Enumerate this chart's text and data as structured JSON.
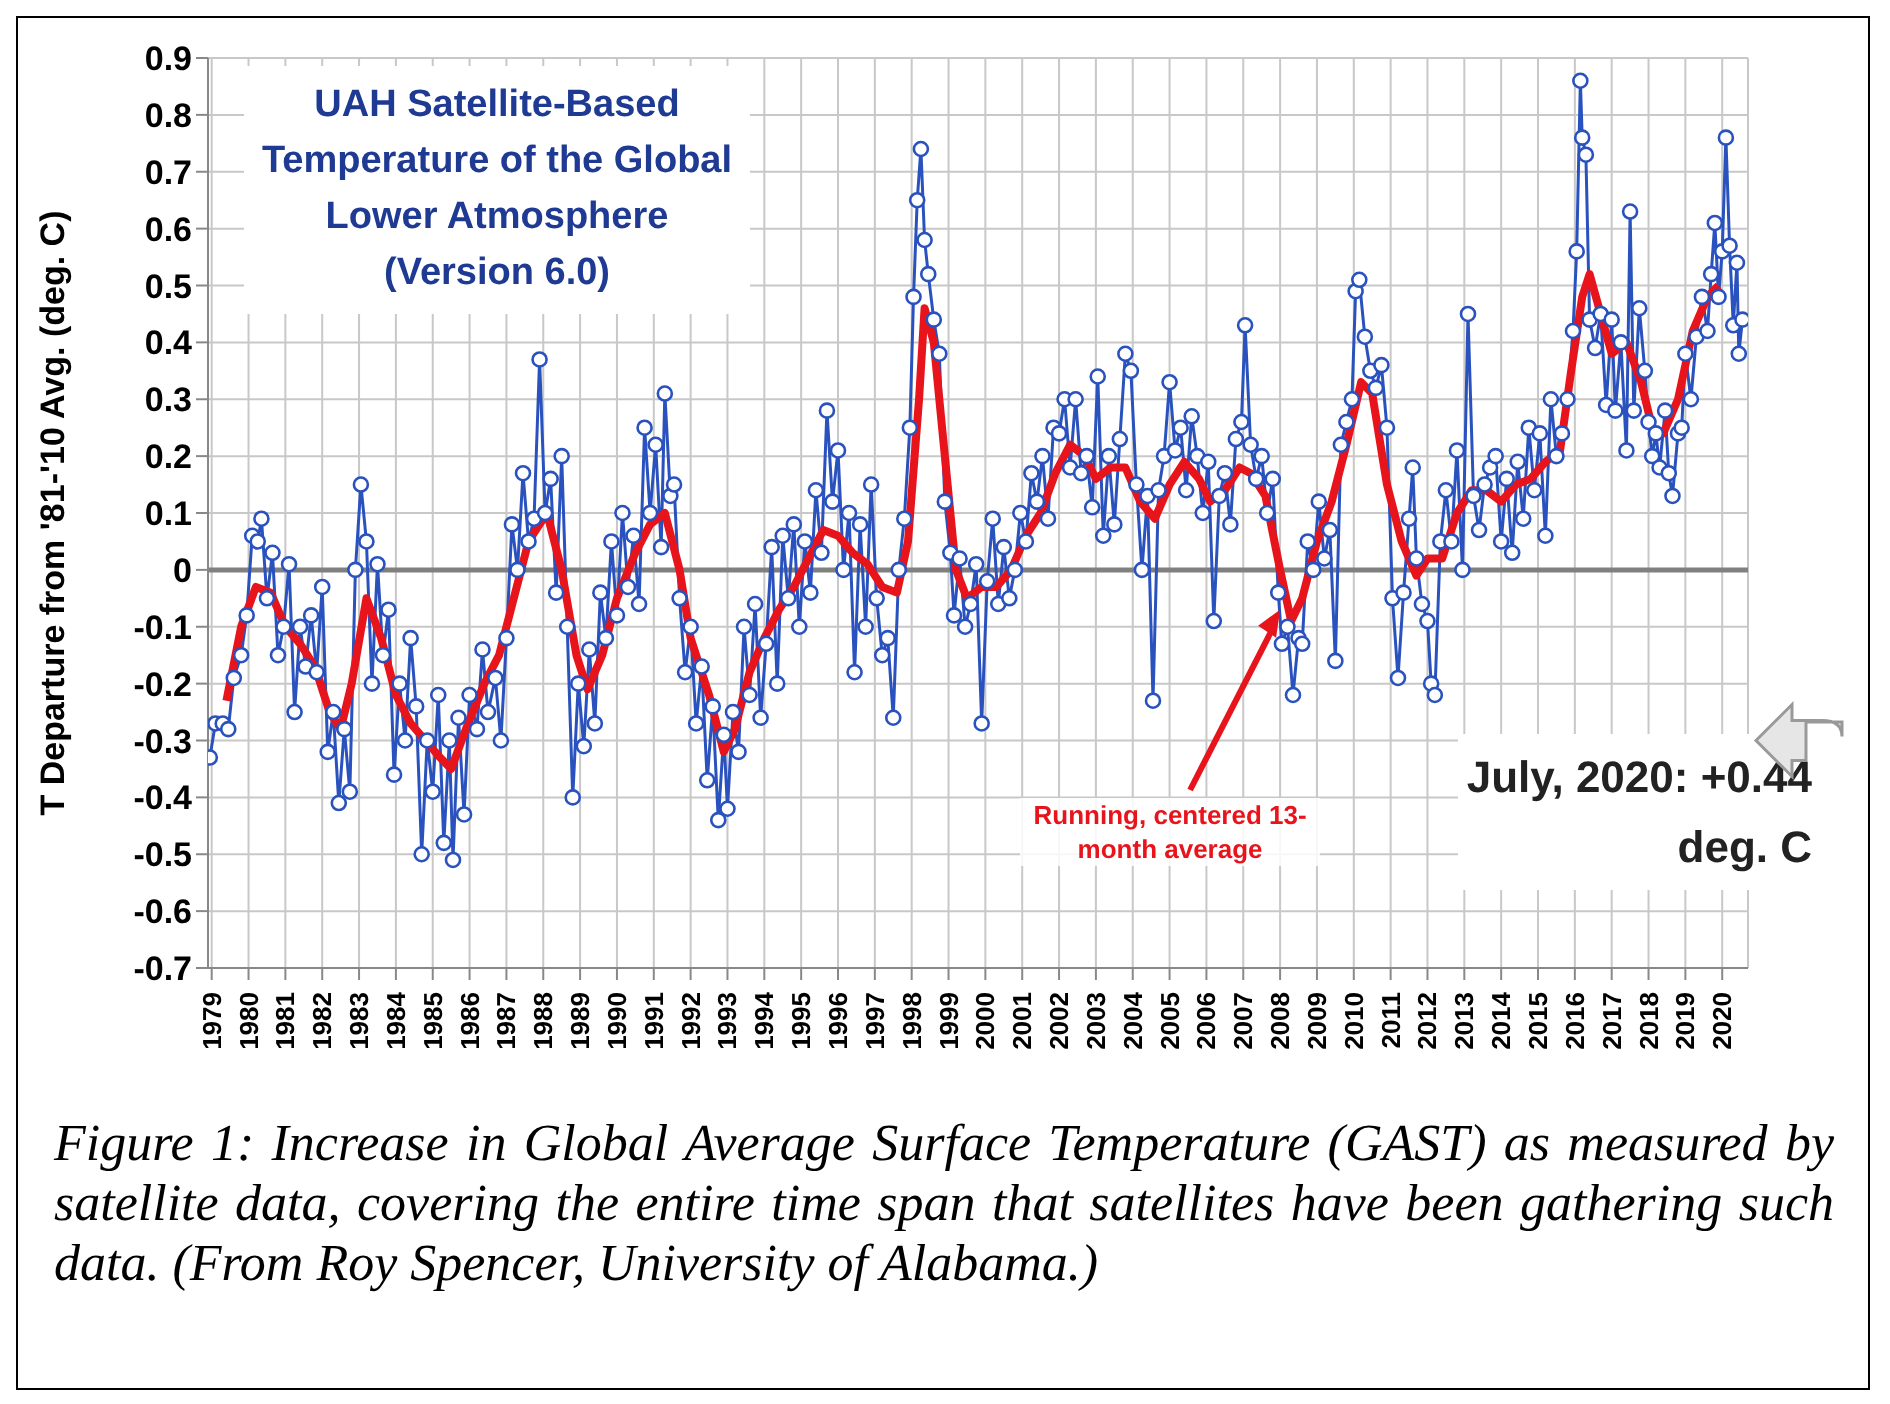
{
  "chart_data": {
    "type": "line",
    "title": "UAH Satellite-Based Temperature of the Global Lower Atmosphere (Version 6.0)",
    "ylabel": "T Departure from '81-'10 Avg. (deg. C)",
    "xlim": [
      1978.9,
      2020.7
    ],
    "xticks": [
      {
        "value": 1979,
        "label": "1979"
      },
      {
        "value": 1980,
        "label": "1980"
      },
      {
        "value": 1981,
        "label": "1981"
      },
      {
        "value": 1982,
        "label": "1982"
      },
      {
        "value": 1983,
        "label": "1983"
      },
      {
        "value": 1984,
        "label": "1984"
      },
      {
        "value": 1985,
        "label": "1985"
      },
      {
        "value": 1986,
        "label": "1986"
      },
      {
        "value": 1987,
        "label": "1987"
      },
      {
        "value": 1988,
        "label": "1988"
      },
      {
        "value": 1989,
        "label": "1989"
      },
      {
        "value": 1990,
        "label": "1990"
      },
      {
        "value": 1991,
        "label": "1991"
      },
      {
        "value": 1992,
        "label": "1992"
      },
      {
        "value": 1993,
        "label": "1993"
      },
      {
        "value": 1994,
        "label": "1994"
      },
      {
        "value": 1995,
        "label": "1995"
      },
      {
        "value": 1996,
        "label": "1996"
      },
      {
        "value": 1997,
        "label": "1997"
      },
      {
        "value": 1998,
        "label": "1998"
      },
      {
        "value": 1999,
        "label": "1999"
      },
      {
        "value": 2000,
        "label": "2000"
      },
      {
        "value": 2001,
        "label": "2001"
      },
      {
        "value": 2002,
        "label": "2002"
      },
      {
        "value": 2003,
        "label": "2003"
      },
      {
        "value": 2004,
        "label": "2004"
      },
      {
        "value": 2005,
        "label": "2005"
      },
      {
        "value": 2006,
        "label": "2006"
      },
      {
        "value": 2007,
        "label": "2007"
      },
      {
        "value": 2008,
        "label": "2008"
      },
      {
        "value": 2009,
        "label": "2009"
      },
      {
        "value": 2010,
        "label": "2010"
      },
      {
        "value": 2011,
        "label": "2011"
      },
      {
        "value": 2012,
        "label": "2012"
      },
      {
        "value": 2013,
        "label": "2013"
      },
      {
        "value": 2014,
        "label": "2014"
      },
      {
        "value": 2015,
        "label": "2015"
      },
      {
        "value": 2016,
        "label": "2016"
      },
      {
        "value": 2017,
        "label": "2017"
      },
      {
        "value": 2018,
        "label": "2018"
      },
      {
        "value": 2019,
        "label": "2019"
      },
      {
        "value": 2020,
        "label": "2020"
      }
    ],
    "ylim": [
      -0.7,
      0.9
    ],
    "yticks": [
      -0.7,
      -0.6,
      -0.5,
      -0.4,
      -0.3,
      -0.2,
      -0.1,
      0,
      0.1,
      0.2,
      0.3,
      0.4,
      0.5,
      0.6,
      0.7,
      0.8,
      0.9
    ],
    "grid": true,
    "ref_lines": [
      {
        "axis": "y",
        "value": 0,
        "color": "#808080"
      }
    ],
    "series": [
      {
        "color": "#2a52be",
        "marker": "circle",
        "x": [
          1978.95,
          1979.1,
          1979.3,
          1979.45,
          1979.6,
          1979.8,
          1979.95,
          1980.1,
          1980.25,
          1980.35,
          1980.5,
          1980.65,
          1980.8,
          1980.95,
          1981.1,
          1981.25,
          1981.4,
          1981.55,
          1981.7,
          1981.85,
          1982.0,
          1982.15,
          1982.3,
          1982.45,
          1982.6,
          1982.75,
          1982.9,
          1983.05,
          1983.2,
          1983.35,
          1983.5,
          1983.65,
          1983.8,
          1983.95,
          1984.1,
          1984.25,
          1984.4,
          1984.55,
          1984.7,
          1984.85,
          1985.0,
          1985.15,
          1985.3,
          1985.45,
          1985.55,
          1985.7,
          1985.85,
          1986.0,
          1986.2,
          1986.35,
          1986.5,
          1986.7,
          1986.85,
          1987.0,
          1987.15,
          1987.3,
          1987.45,
          1987.6,
          1987.75,
          1987.9,
          1988.05,
          1988.2,
          1988.35,
          1988.5,
          1988.65,
          1988.8,
          1988.95,
          1989.1,
          1989.25,
          1989.4,
          1989.55,
          1989.7,
          1989.85,
          1990.0,
          1990.15,
          1990.3,
          1990.45,
          1990.6,
          1990.75,
          1990.9,
          1991.05,
          1991.2,
          1991.3,
          1991.45,
          1991.55,
          1991.7,
          1991.85,
          1992.0,
          1992.15,
          1992.3,
          1992.45,
          1992.6,
          1992.75,
          1992.9,
          1993.0,
          1993.15,
          1993.3,
          1993.45,
          1993.6,
          1993.75,
          1993.9,
          1994.05,
          1994.2,
          1994.35,
          1994.5,
          1994.65,
          1994.8,
          1994.95,
          1995.1,
          1995.25,
          1995.4,
          1995.55,
          1995.7,
          1995.85,
          1996.0,
          1996.15,
          1996.3,
          1996.45,
          1996.6,
          1996.75,
          1996.9,
          1997.05,
          1997.2,
          1997.35,
          1997.5,
          1997.65,
          1997.8,
          1997.95,
          1998.05,
          1998.15,
          1998.25,
          1998.35,
          1998.45,
          1998.6,
          1998.75,
          1998.9,
          1999.05,
          1999.15,
          1999.3,
          1999.45,
          1999.6,
          1999.75,
          1999.9,
          2000.05,
          2000.2,
          2000.35,
          2000.5,
          2000.65,
          2000.8,
          2000.95,
          2001.1,
          2001.25,
          2001.4,
          2001.55,
          2001.7,
          2001.85,
          2002.0,
          2002.15,
          2002.3,
          2002.45,
          2002.6,
          2002.75,
          2002.9,
          2003.05,
          2003.2,
          2003.35,
          2003.5,
          2003.65,
          2003.8,
          2003.95,
          2004.1,
          2004.25,
          2004.4,
          2004.55,
          2004.7,
          2004.85,
          2005.0,
          2005.15,
          2005.3,
          2005.45,
          2005.6,
          2005.75,
          2005.9,
          2006.05,
          2006.2,
          2006.35,
          2006.5,
          2006.65,
          2006.8,
          2006.95,
          2007.05,
          2007.2,
          2007.35,
          2007.5,
          2007.65,
          2007.8,
          2007.95,
          2008.05,
          2008.2,
          2008.35,
          2008.5,
          2008.6,
          2008.75,
          2008.9,
          2009.05,
          2009.2,
          2009.35,
          2009.5,
          2009.65,
          2009.8,
          2009.95,
          2010.05,
          2010.15,
          2010.3,
          2010.45,
          2010.6,
          2010.75,
          2010.9,
          2011.05,
          2011.2,
          2011.35,
          2011.5,
          2011.6,
          2011.7,
          2011.85,
          2012.0,
          2012.1,
          2012.2,
          2012.35,
          2012.5,
          2012.65,
          2012.8,
          2012.95,
          2013.1,
          2013.25,
          2013.4,
          2013.55,
          2013.7,
          2013.85,
          2014.0,
          2014.15,
          2014.3,
          2014.45,
          2014.6,
          2014.75,
          2014.9,
          2015.05,
          2015.2,
          2015.35,
          2015.5,
          2015.65,
          2015.8,
          2015.95,
          2016.05,
          2016.15,
          2016.2,
          2016.3,
          2016.4,
          2016.55,
          2016.7,
          2016.85,
          2017.0,
          2017.1,
          2017.25,
          2017.4,
          2017.5,
          2017.6,
          2017.75,
          2017.9,
          2018.0,
          2018.1,
          2018.2,
          2018.3,
          2018.45,
          2018.55,
          2018.65,
          2018.8,
          2018.9,
          2019.0,
          2019.15,
          2019.3,
          2019.45,
          2019.6,
          2019.7,
          2019.8,
          2019.9,
          2020.0,
          2020.1,
          2020.2,
          2020.3,
          2020.4,
          2020.45,
          2020.55
        ],
        "values": [
          -0.33,
          -0.27,
          -0.27,
          -0.28,
          -0.19,
          -0.15,
          -0.08,
          0.06,
          0.05,
          0.09,
          -0.05,
          0.03,
          -0.15,
          -0.1,
          0.01,
          -0.25,
          -0.1,
          -0.17,
          -0.08,
          -0.18,
          -0.03,
          -0.32,
          -0.25,
          -0.41,
          -0.28,
          -0.39,
          0.0,
          0.15,
          0.05,
          -0.2,
          0.01,
          -0.15,
          -0.07,
          -0.36,
          -0.2,
          -0.3,
          -0.12,
          -0.24,
          -0.5,
          -0.3,
          -0.39,
          -0.22,
          -0.48,
          -0.3,
          -0.51,
          -0.26,
          -0.43,
          -0.22,
          -0.28,
          -0.14,
          -0.25,
          -0.19,
          -0.3,
          -0.12,
          0.08,
          0.0,
          0.17,
          0.05,
          0.09,
          0.37,
          0.1,
          0.16,
          -0.04,
          0.2,
          -0.1,
          -0.4,
          -0.2,
          -0.31,
          -0.14,
          -0.27,
          -0.04,
          -0.12,
          0.05,
          -0.08,
          0.1,
          -0.03,
          0.06,
          -0.06,
          0.25,
          0.1,
          0.22,
          0.04,
          0.31,
          0.13,
          0.15,
          -0.05,
          -0.18,
          -0.1,
          -0.27,
          -0.17,
          -0.37,
          -0.24,
          -0.44,
          -0.29,
          -0.42,
          -0.25,
          -0.32,
          -0.1,
          -0.22,
          -0.06,
          -0.26,
          -0.13,
          0.04,
          -0.2,
          0.06,
          -0.05,
          0.08,
          -0.1,
          0.05,
          -0.04,
          0.14,
          0.03,
          0.28,
          0.12,
          0.21,
          0.0,
          0.1,
          -0.18,
          0.08,
          -0.1,
          0.15,
          -0.05,
          -0.15,
          -0.12,
          -0.26,
          0.0,
          0.09,
          0.25,
          0.48,
          0.65,
          0.74,
          0.58,
          0.52,
          0.44,
          0.38,
          0.12,
          0.03,
          -0.08,
          0.02,
          -0.1,
          -0.06,
          0.01,
          -0.27,
          -0.02,
          0.09,
          -0.06,
          0.04,
          -0.05,
          0.0,
          0.1,
          0.05,
          0.17,
          0.12,
          0.2,
          0.09,
          0.25,
          0.24,
          0.3,
          0.18,
          0.3,
          0.17,
          0.2,
          0.11,
          0.34,
          0.06,
          0.2,
          0.08,
          0.23,
          0.38,
          0.35,
          0.15,
          0.0,
          0.13,
          -0.23,
          0.14,
          0.2,
          0.33,
          0.21,
          0.25,
          0.14,
          0.27,
          0.2,
          0.1,
          0.19,
          -0.09,
          0.13,
          0.17,
          0.08,
          0.23,
          0.26,
          0.43,
          0.22,
          0.16,
          0.2,
          0.1,
          0.16,
          -0.04,
          -0.13,
          -0.1,
          -0.22,
          -0.12,
          -0.13,
          0.05,
          0.0,
          0.12,
          0.02,
          0.07,
          -0.16,
          0.22,
          0.26,
          0.3,
          0.49,
          0.51,
          0.41,
          0.35,
          0.32,
          0.36,
          0.25,
          -0.05,
          -0.19,
          -0.04,
          0.09,
          0.18,
          0.02,
          -0.06,
          -0.09,
          -0.2,
          -0.22,
          0.05,
          0.14,
          0.05,
          0.21,
          0.0,
          0.45,
          0.13,
          0.07,
          0.15,
          0.18,
          0.2,
          0.05,
          0.16,
          0.03,
          0.19,
          0.09,
          0.25,
          0.14,
          0.24,
          0.06,
          0.3,
          0.2,
          0.24,
          0.3,
          0.42,
          0.56,
          0.86,
          0.76,
          0.73,
          0.44,
          0.39,
          0.45,
          0.29,
          0.44,
          0.28,
          0.4,
          0.21,
          0.63,
          0.28,
          0.46,
          0.35,
          0.26,
          0.2,
          0.24,
          0.18,
          0.28,
          0.17,
          0.13,
          0.24,
          0.25,
          0.38,
          0.3,
          0.41,
          0.48,
          0.42,
          0.52,
          0.61,
          0.48,
          0.56,
          0.76,
          0.57,
          0.43,
          0.54,
          0.38,
          0.44
        ]
      },
      {
        "color": "#e8141c",
        "marker": "none",
        "x": [
          1979.4,
          1979.8,
          1980.2,
          1980.6,
          1981.0,
          1981.4,
          1981.8,
          1982.2,
          1982.5,
          1982.8,
          1983.2,
          1983.6,
          1984.0,
          1984.4,
          1984.8,
          1985.2,
          1985.5,
          1985.9,
          1986.4,
          1986.8,
          1987.2,
          1987.6,
          1988.1,
          1988.5,
          1988.9,
          1989.2,
          1989.6,
          1990.0,
          1990.5,
          1990.9,
          1991.3,
          1991.7,
          1992.0,
          1992.5,
          1992.9,
          1993.2,
          1993.6,
          1994.0,
          1994.4,
          1994.8,
          1995.2,
          1995.6,
          1996.0,
          1996.4,
          1996.8,
          1997.2,
          1997.6,
          1997.9,
          1998.2,
          1998.35,
          1998.6,
          1998.9,
          1999.2,
          1999.5,
          1999.9,
          2000.3,
          2000.7,
          2001.1,
          2001.5,
          2001.9,
          2002.3,
          2002.7,
          2003.0,
          2003.4,
          2003.8,
          2004.2,
          2004.6,
          2005.0,
          2005.4,
          2005.8,
          2006.1,
          2006.5,
          2006.9,
          2007.2,
          2007.6,
          2008.0,
          2008.3,
          2008.6,
          2009.0,
          2009.4,
          2009.8,
          2010.2,
          2010.5,
          2010.9,
          2011.3,
          2011.7,
          2012.0,
          2012.4,
          2012.8,
          2013.2,
          2013.6,
          2014.0,
          2014.4,
          2014.8,
          2015.2,
          2015.6,
          2015.9,
          2016.2,
          2016.4,
          2016.7,
          2017.0,
          2017.4,
          2017.8,
          2018.1,
          2018.4,
          2018.8,
          2019.2,
          2019.6,
          2019.9
        ],
        "values": [
          -0.23,
          -0.1,
          -0.03,
          -0.04,
          -0.1,
          -0.13,
          -0.17,
          -0.25,
          -0.28,
          -0.2,
          -0.05,
          -0.12,
          -0.22,
          -0.27,
          -0.3,
          -0.33,
          -0.35,
          -0.28,
          -0.2,
          -0.15,
          -0.05,
          0.05,
          0.1,
          0.0,
          -0.15,
          -0.21,
          -0.15,
          -0.05,
          0.03,
          0.08,
          0.1,
          0.0,
          -0.12,
          -0.22,
          -0.32,
          -0.28,
          -0.18,
          -0.12,
          -0.07,
          -0.03,
          0.02,
          0.07,
          0.06,
          0.03,
          0.01,
          -0.03,
          -0.04,
          0.05,
          0.3,
          0.46,
          0.4,
          0.2,
          0.0,
          -0.05,
          -0.03,
          -0.03,
          0.0,
          0.06,
          0.1,
          0.17,
          0.22,
          0.2,
          0.16,
          0.18,
          0.18,
          0.12,
          0.09,
          0.15,
          0.19,
          0.16,
          0.12,
          0.14,
          0.18,
          0.17,
          0.13,
          0.0,
          -0.09,
          -0.05,
          0.05,
          0.12,
          0.22,
          0.33,
          0.31,
          0.15,
          0.05,
          -0.01,
          0.02,
          0.02,
          0.1,
          0.14,
          0.14,
          0.12,
          0.15,
          0.16,
          0.19,
          0.21,
          0.35,
          0.48,
          0.52,
          0.45,
          0.38,
          0.4,
          0.33,
          0.25,
          0.24,
          0.3,
          0.42,
          0.48,
          0.5
        ]
      }
    ],
    "annotations": [
      {
        "text": "Running, centered 13-month average",
        "x": 2008.0,
        "y": -0.07
      },
      "July, 2020: +0.44 deg. C",
      "Figure 1:  Increase in Global Average Surface Temperature (GAST) as measured by satellite data, covering the entire time span that satellites have been gathering such data. (From Roy Spencer, University of Alabama.)"
    ]
  }
}
